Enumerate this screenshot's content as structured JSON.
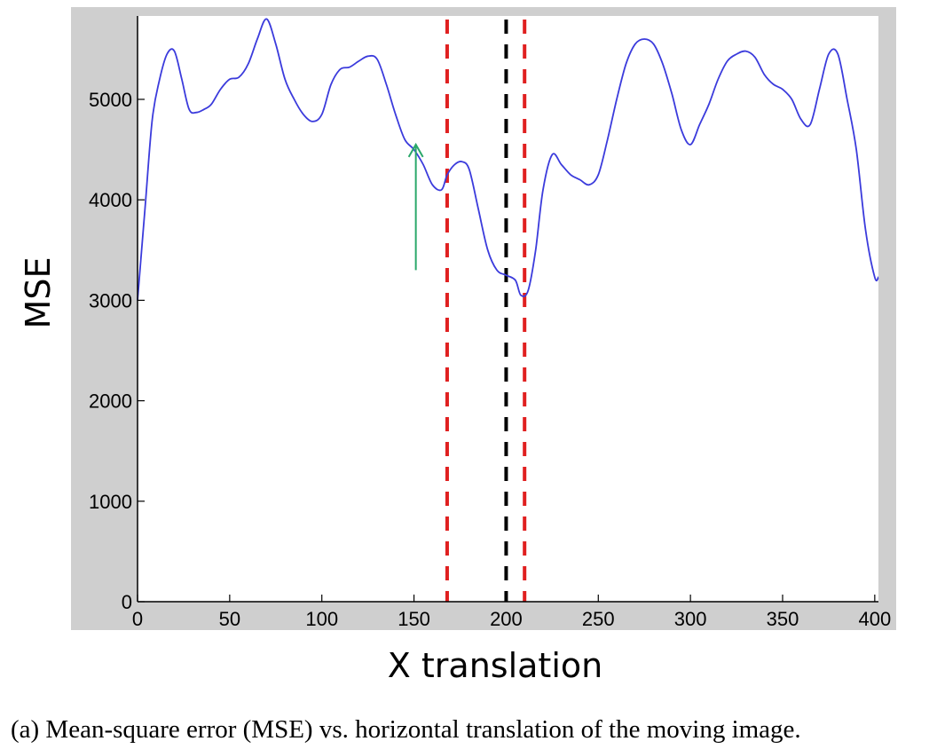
{
  "chart_data": {
    "type": "line",
    "xlabel": "X translation",
    "ylabel": "MSE",
    "xlim": [
      0,
      402
    ],
    "ylim": [
      0,
      5830
    ],
    "xticks": [
      0,
      50,
      100,
      150,
      200,
      250,
      300,
      350,
      400
    ],
    "yticks": [
      0,
      1000,
      2000,
      3000,
      4000,
      5000
    ],
    "grid": false,
    "series": [
      {
        "color": "#3b3bdc",
        "x": [
          0,
          4,
          8,
          12,
          16,
          20,
          24,
          28,
          32,
          36,
          40,
          45,
          50,
          55,
          60,
          65,
          70,
          75,
          80,
          85,
          90,
          95,
          100,
          105,
          110,
          115,
          120,
          125,
          130,
          135,
          140,
          145,
          150,
          155,
          160,
          165,
          168,
          172,
          176,
          180,
          185,
          190,
          195,
          200,
          205,
          208,
          212,
          216,
          220,
          225,
          230,
          235,
          240,
          245,
          250,
          255,
          260,
          265,
          270,
          275,
          280,
          285,
          290,
          295,
          300,
          305,
          310,
          315,
          320,
          325,
          330,
          335,
          340,
          345,
          350,
          355,
          360,
          365,
          370,
          375,
          380,
          385,
          390,
          395,
          400,
          402
        ],
        "y": [
          3000,
          3900,
          4800,
          5200,
          5450,
          5480,
          5200,
          4900,
          4870,
          4900,
          4950,
          5100,
          5200,
          5220,
          5350,
          5600,
          5800,
          5550,
          5200,
          5000,
          4850,
          4780,
          4850,
          5150,
          5300,
          5320,
          5380,
          5430,
          5400,
          5150,
          4850,
          4600,
          4500,
          4350,
          4150,
          4100,
          4250,
          4350,
          4380,
          4300,
          3900,
          3500,
          3300,
          3250,
          3200,
          3050,
          3100,
          3500,
          4100,
          4450,
          4350,
          4250,
          4200,
          4150,
          4250,
          4600,
          5000,
          5350,
          5550,
          5600,
          5550,
          5350,
          5050,
          4700,
          4550,
          4750,
          4950,
          5200,
          5380,
          5450,
          5480,
          5420,
          5250,
          5150,
          5100,
          5000,
          4800,
          4750,
          5100,
          5450,
          5450,
          5000,
          4500,
          3700,
          3230,
          3230
        ]
      }
    ],
    "reference_lines": [
      {
        "x": 168,
        "color": "#e02020",
        "style": "dashed"
      },
      {
        "x": 200,
        "color": "#000000",
        "style": "dashed"
      },
      {
        "x": 210,
        "color": "#e02020",
        "style": "dashed"
      }
    ],
    "annotations": [
      {
        "type": "arrow",
        "x": 151,
        "y_from": 3300,
        "y_to": 4550,
        "color": "#2aa86a"
      }
    ]
  },
  "caption": "(a) Mean-square error (MSE) vs. horizontal translation of the moving image.",
  "colors": {
    "frame": "#cfcfcf",
    "plot_background": "#ffffff",
    "line": "#3b3bdc",
    "red_marker": "#e02020",
    "black_marker": "#000000",
    "arrow": "#2aa86a"
  }
}
